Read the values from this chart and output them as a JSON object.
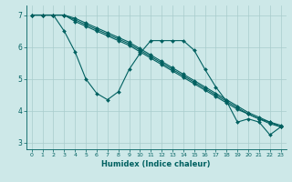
{
  "xlabel": "Humidex (Indice chaleur)",
  "xlim": [
    -0.5,
    23.5
  ],
  "ylim": [
    2.8,
    7.3
  ],
  "yticks": [
    3,
    4,
    5,
    6,
    7
  ],
  "xticks": [
    0,
    1,
    2,
    3,
    4,
    5,
    6,
    7,
    8,
    9,
    10,
    11,
    12,
    13,
    14,
    15,
    16,
    17,
    18,
    19,
    20,
    21,
    22,
    23
  ],
  "bg_color": "#cde8e8",
  "grid_color": "#a8cccc",
  "line_color": "#006060",
  "line1_y": [
    7.0,
    7.0,
    7.0,
    6.5,
    5.85,
    5.0,
    4.55,
    4.35,
    4.6,
    5.3,
    5.8,
    6.2,
    6.2,
    6.2,
    6.2,
    5.9,
    5.3,
    4.75,
    4.3,
    3.65,
    3.75,
    3.65,
    3.25,
    3.5
  ],
  "line2_y": [
    7.0,
    7.0,
    7.0,
    7.0,
    6.9,
    6.75,
    6.6,
    6.45,
    6.3,
    6.15,
    5.95,
    5.75,
    5.55,
    5.35,
    5.15,
    4.95,
    4.75,
    4.55,
    4.35,
    4.15,
    3.95,
    3.8,
    3.65,
    3.5
  ],
  "line3_y": [
    7.0,
    7.0,
    7.0,
    7.0,
    6.85,
    6.7,
    6.55,
    6.4,
    6.25,
    6.1,
    5.9,
    5.7,
    5.5,
    5.3,
    5.1,
    4.9,
    4.7,
    4.5,
    4.3,
    4.1,
    3.9,
    3.75,
    3.6,
    3.5
  ],
  "line4_y": [
    7.0,
    7.0,
    7.0,
    7.0,
    6.8,
    6.65,
    6.5,
    6.35,
    6.2,
    6.05,
    5.85,
    5.65,
    5.45,
    5.25,
    5.05,
    4.85,
    4.65,
    4.45,
    4.25,
    4.05,
    3.9,
    3.75,
    3.65,
    3.55
  ]
}
